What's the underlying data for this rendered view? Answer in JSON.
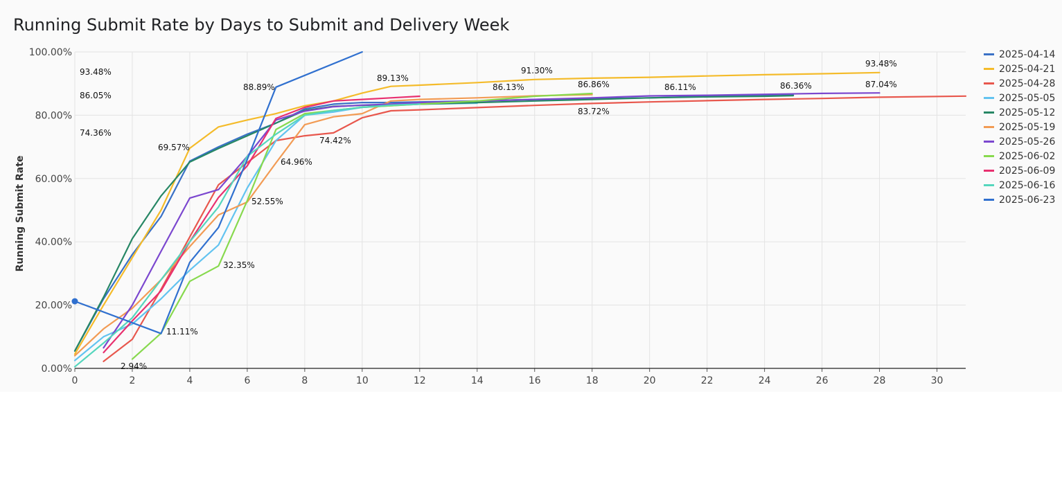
{
  "chart_data": {
    "type": "line",
    "title": "Running Submit Rate by Days to Submit and Delivery Week",
    "xlabel": "",
    "ylabel": "Running Submit Rate",
    "xlim": [
      0,
      31
    ],
    "ylim": [
      0,
      100
    ],
    "x_ticks": [
      "0",
      "2",
      "4",
      "6",
      "8",
      "10",
      "12",
      "14",
      "16",
      "18",
      "20",
      "22",
      "24",
      "26",
      "28",
      "30"
    ],
    "y_ticks": [
      "0.00%",
      "20.00%",
      "40.00%",
      "60.00%",
      "80.00%",
      "100.00%"
    ],
    "grid": true,
    "legend_position": "right",
    "series": [
      {
        "name": "2025-04-14",
        "color": "#3a71c6",
        "points": [
          [
            0,
            5.5
          ],
          [
            1,
            22
          ],
          [
            2,
            36
          ],
          [
            3,
            48
          ],
          [
            4,
            65.5
          ],
          [
            5,
            70
          ],
          [
            6,
            74
          ],
          [
            7,
            77.5
          ],
          [
            8,
            82
          ],
          [
            9,
            83.5
          ],
          [
            10,
            84
          ],
          [
            11,
            84
          ],
          [
            12,
            84.2
          ],
          [
            14,
            84.5
          ],
          [
            16,
            85
          ],
          [
            18,
            85.2
          ],
          [
            20,
            85.5
          ],
          [
            22,
            86
          ],
          [
            24,
            86.2
          ],
          [
            25,
            86.36
          ]
        ]
      },
      {
        "name": "2025-04-21",
        "color": "#f4bb2a",
        "points": [
          [
            0,
            4.5
          ],
          [
            1,
            20
          ],
          [
            2,
            35
          ],
          [
            3,
            50
          ],
          [
            4,
            69.57
          ],
          [
            5,
            76.3
          ],
          [
            6,
            78.5
          ],
          [
            7,
            80.5
          ],
          [
            8,
            83
          ],
          [
            9,
            84.5
          ],
          [
            10,
            87
          ],
          [
            11,
            89.13
          ],
          [
            12,
            89.5
          ],
          [
            14,
            90.3
          ],
          [
            16,
            91.3
          ],
          [
            18,
            91.7
          ],
          [
            20,
            92
          ],
          [
            22,
            92.4
          ],
          [
            24,
            92.8
          ],
          [
            26,
            93.1
          ],
          [
            28,
            93.48
          ]
        ]
      },
      {
        "name": "2025-04-28",
        "color": "#e8574d",
        "points": [
          [
            1,
            2.2
          ],
          [
            2,
            9.2
          ],
          [
            3,
            25
          ],
          [
            4,
            41.5
          ],
          [
            5,
            58
          ],
          [
            6,
            65
          ],
          [
            7,
            72
          ],
          [
            8,
            73.5
          ],
          [
            9,
            74.42
          ],
          [
            10,
            79.2
          ],
          [
            11,
            81.4
          ],
          [
            12,
            81.7
          ],
          [
            14,
            82.4
          ],
          [
            16,
            83.1
          ],
          [
            18,
            83.72
          ],
          [
            20,
            84.2
          ],
          [
            22,
            84.6
          ],
          [
            24,
            85
          ],
          [
            26,
            85.3
          ],
          [
            28,
            85.7
          ],
          [
            31,
            86.05
          ]
        ]
      },
      {
        "name": "2025-05-05",
        "color": "#62c3f0",
        "points": [
          [
            0,
            2.5
          ],
          [
            1,
            10
          ],
          [
            2,
            14
          ],
          [
            3,
            22
          ],
          [
            4,
            31
          ],
          [
            5,
            39
          ],
          [
            6,
            57
          ],
          [
            7,
            72
          ],
          [
            8,
            80
          ],
          [
            9,
            81
          ],
          [
            10,
            82.5
          ],
          [
            11,
            83
          ],
          [
            12,
            83.5
          ],
          [
            14,
            83.8
          ]
        ]
      },
      {
        "name": "2025-05-12",
        "color": "#278765",
        "points": [
          [
            0,
            5.5
          ],
          [
            1,
            22.5
          ],
          [
            2,
            41
          ],
          [
            3,
            54.5
          ],
          [
            4,
            65.2
          ],
          [
            5,
            69.5
          ],
          [
            6,
            73.5
          ],
          [
            7,
            77.5
          ],
          [
            8,
            81.5
          ],
          [
            9,
            82.8
          ],
          [
            10,
            83.1
          ],
          [
            11,
            83.4
          ],
          [
            12,
            83.5
          ],
          [
            14,
            84
          ],
          [
            16,
            84.5
          ],
          [
            18,
            85
          ],
          [
            20,
            85.5
          ],
          [
            22,
            85.8
          ],
          [
            24,
            86
          ],
          [
            25,
            86.2
          ]
        ]
      },
      {
        "name": "2025-05-19",
        "color": "#f29b54",
        "points": [
          [
            0,
            4
          ],
          [
            1,
            12.5
          ],
          [
            2,
            19
          ],
          [
            3,
            28
          ],
          [
            4,
            38.5
          ],
          [
            5,
            48.5
          ],
          [
            6,
            52.55
          ],
          [
            7,
            64.96
          ],
          [
            8,
            77
          ],
          [
            9,
            79.5
          ],
          [
            10,
            80.5
          ],
          [
            11,
            84.5
          ],
          [
            12,
            85
          ],
          [
            14,
            85.5
          ],
          [
            16,
            86.13
          ],
          [
            18,
            86.5
          ]
        ]
      },
      {
        "name": "2025-05-26",
        "color": "#7b47cf",
        "points": [
          [
            1,
            6.5
          ],
          [
            2,
            20
          ],
          [
            3,
            37
          ],
          [
            4,
            53.8
          ],
          [
            5,
            56.5
          ],
          [
            6,
            67
          ],
          [
            7,
            78.5
          ],
          [
            8,
            81.3
          ],
          [
            9,
            82.7
          ],
          [
            10,
            83.2
          ],
          [
            11,
            83.5
          ],
          [
            12,
            84
          ],
          [
            14,
            84.5
          ],
          [
            16,
            85
          ],
          [
            18,
            85.5
          ],
          [
            20,
            86.11
          ],
          [
            22,
            86.3
          ],
          [
            24,
            86.6
          ],
          [
            26,
            86.9
          ],
          [
            28,
            87.04
          ]
        ]
      },
      {
        "name": "2025-06-02",
        "color": "#87d94e",
        "points": [
          [
            2,
            2.94
          ],
          [
            3,
            11.11
          ],
          [
            4,
            27.5
          ],
          [
            5,
            32.35
          ],
          [
            6,
            53
          ],
          [
            7,
            75.5
          ],
          [
            8,
            80.5
          ],
          [
            9,
            81.5
          ],
          [
            10,
            82.5
          ],
          [
            11,
            83
          ],
          [
            12,
            83.5
          ],
          [
            14,
            84.5
          ],
          [
            16,
            86
          ],
          [
            18,
            86.86
          ]
        ]
      },
      {
        "name": "2025-06-09",
        "color": "#e8306f",
        "points": [
          [
            1,
            5
          ],
          [
            2,
            15
          ],
          [
            3,
            24.5
          ],
          [
            4,
            40
          ],
          [
            5,
            54
          ],
          [
            6,
            64
          ],
          [
            7,
            79
          ],
          [
            8,
            82.5
          ],
          [
            9,
            84.5
          ],
          [
            10,
            85
          ],
          [
            11,
            85.5
          ],
          [
            12,
            86
          ]
        ]
      },
      {
        "name": "2025-06-16",
        "color": "#55d6bd",
        "points": [
          [
            0,
            0.5
          ],
          [
            1,
            8
          ],
          [
            2,
            16
          ],
          [
            3,
            28
          ],
          [
            4,
            40
          ],
          [
            5,
            51
          ],
          [
            6,
            67
          ],
          [
            7,
            74
          ],
          [
            8,
            80
          ],
          [
            9,
            81.5
          ],
          [
            10,
            82.5
          ],
          [
            11,
            83.2
          ],
          [
            12,
            83.5
          ]
        ]
      },
      {
        "name": "2025-06-23",
        "color": "#3070cf",
        "points": [
          [
            0,
            21.2
          ],
          [
            3,
            11
          ],
          [
            4,
            33.5
          ],
          [
            5,
            44.5
          ],
          [
            6,
            66
          ],
          [
            7,
            88.89
          ],
          [
            10,
            100
          ]
        ]
      }
    ],
    "annotations": [
      {
        "text": "93.48%",
        "x": 0,
        "y": 93.48
      },
      {
        "text": "86.05%",
        "x": 0,
        "y": 86.05
      },
      {
        "text": "74.36%",
        "x": 0,
        "y": 74.36
      },
      {
        "text": "69.57%",
        "x": 4,
        "y": 69.57
      },
      {
        "text": "88.89%",
        "x": 7,
        "y": 88.89
      },
      {
        "text": "89.13%",
        "x": 11,
        "y": 89.13
      },
      {
        "text": "91.30%",
        "x": 16,
        "y": 91.3
      },
      {
        "text": "93.48%",
        "x": 28,
        "y": 93.48
      },
      {
        "text": "86.13%",
        "x": 16,
        "y": 86.13
      },
      {
        "text": "86.86%",
        "x": 18,
        "y": 86.86
      },
      {
        "text": "86.11%",
        "x": 20,
        "y": 86.11
      },
      {
        "text": "86.36%",
        "x": 25,
        "y": 86.36
      },
      {
        "text": "87.04%",
        "x": 28,
        "y": 87.04
      },
      {
        "text": "83.72%",
        "x": 18,
        "y": 83.72
      },
      {
        "text": "74.42%",
        "x": 9,
        "y": 74.42
      },
      {
        "text": "64.96%",
        "x": 7,
        "y": 64.96
      },
      {
        "text": "52.55%",
        "x": 6,
        "y": 52.55
      },
      {
        "text": "32.35%",
        "x": 5,
        "y": 32.35
      },
      {
        "text": "11.11%",
        "x": 3,
        "y": 11.11
      },
      {
        "text": "2.94%",
        "x": 2,
        "y": 2.94
      }
    ]
  }
}
